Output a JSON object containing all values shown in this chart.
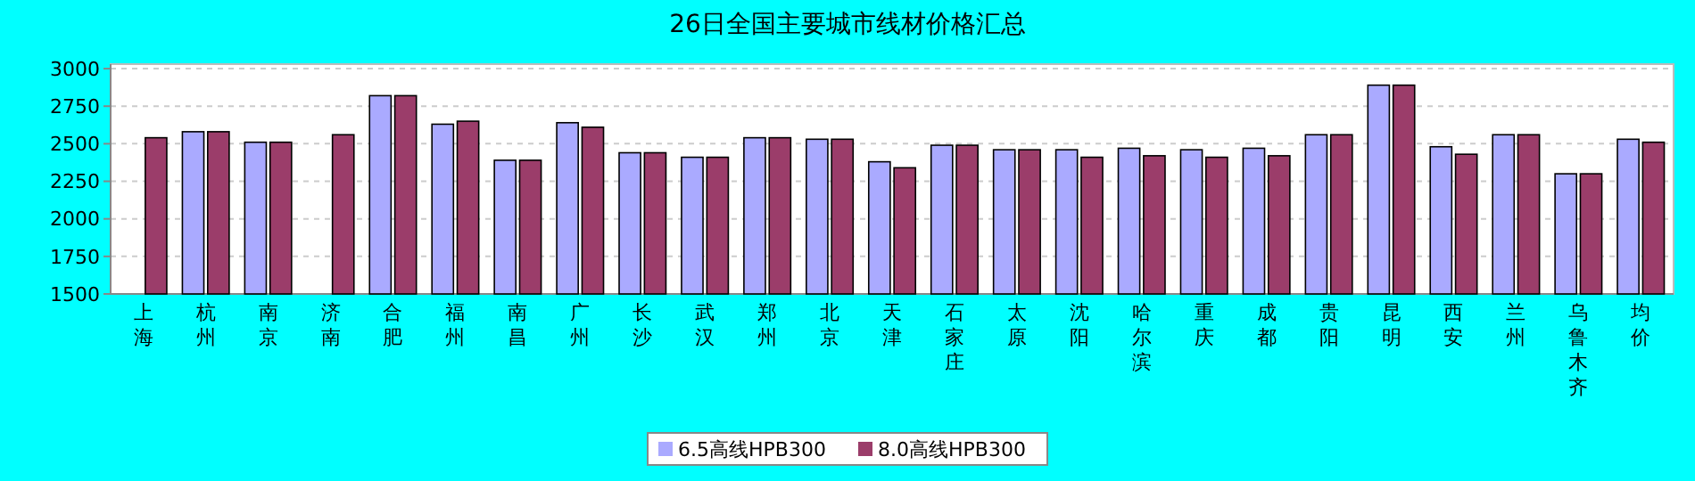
{
  "chart_data": {
    "type": "bar",
    "title": "26日全国主要城市线材价格汇总",
    "categories": [
      "上海",
      "杭州",
      "南京",
      "济南",
      "合肥",
      "福州",
      "南昌",
      "广州",
      "长沙",
      "武汉",
      "郑州",
      "北京",
      "天津",
      "石家庄",
      "太原",
      "沈阳",
      "哈尔滨",
      "重庆",
      "成都",
      "贵阳",
      "昆明",
      "西安",
      "兰州",
      "乌鲁木齐",
      "均价"
    ],
    "series": [
      {
        "name": "6.5高线HPB300",
        "color": "#aaaaff",
        "values": [
          null,
          2580,
          2510,
          null,
          2820,
          2630,
          2390,
          2640,
          2440,
          2410,
          2540,
          2530,
          2380,
          2490,
          2460,
          2460,
          2470,
          2460,
          2470,
          2560,
          2890,
          2480,
          2560,
          2300,
          2530
        ]
      },
      {
        "name": "8.0高线HPB300",
        "color": "#9b3d6a",
        "values": [
          2540,
          2580,
          2510,
          2560,
          2820,
          2650,
          2390,
          2610,
          2440,
          2410,
          2540,
          2530,
          2340,
          2490,
          2460,
          2410,
          2420,
          2410,
          2420,
          2560,
          2890,
          2430,
          2560,
          2300,
          2510
        ]
      }
    ],
    "ylim": [
      1500,
      3030
    ],
    "yticks": [
      1500,
      1750,
      2000,
      2250,
      2500,
      2750,
      3000
    ],
    "grid": "y",
    "legend": "bottom"
  }
}
